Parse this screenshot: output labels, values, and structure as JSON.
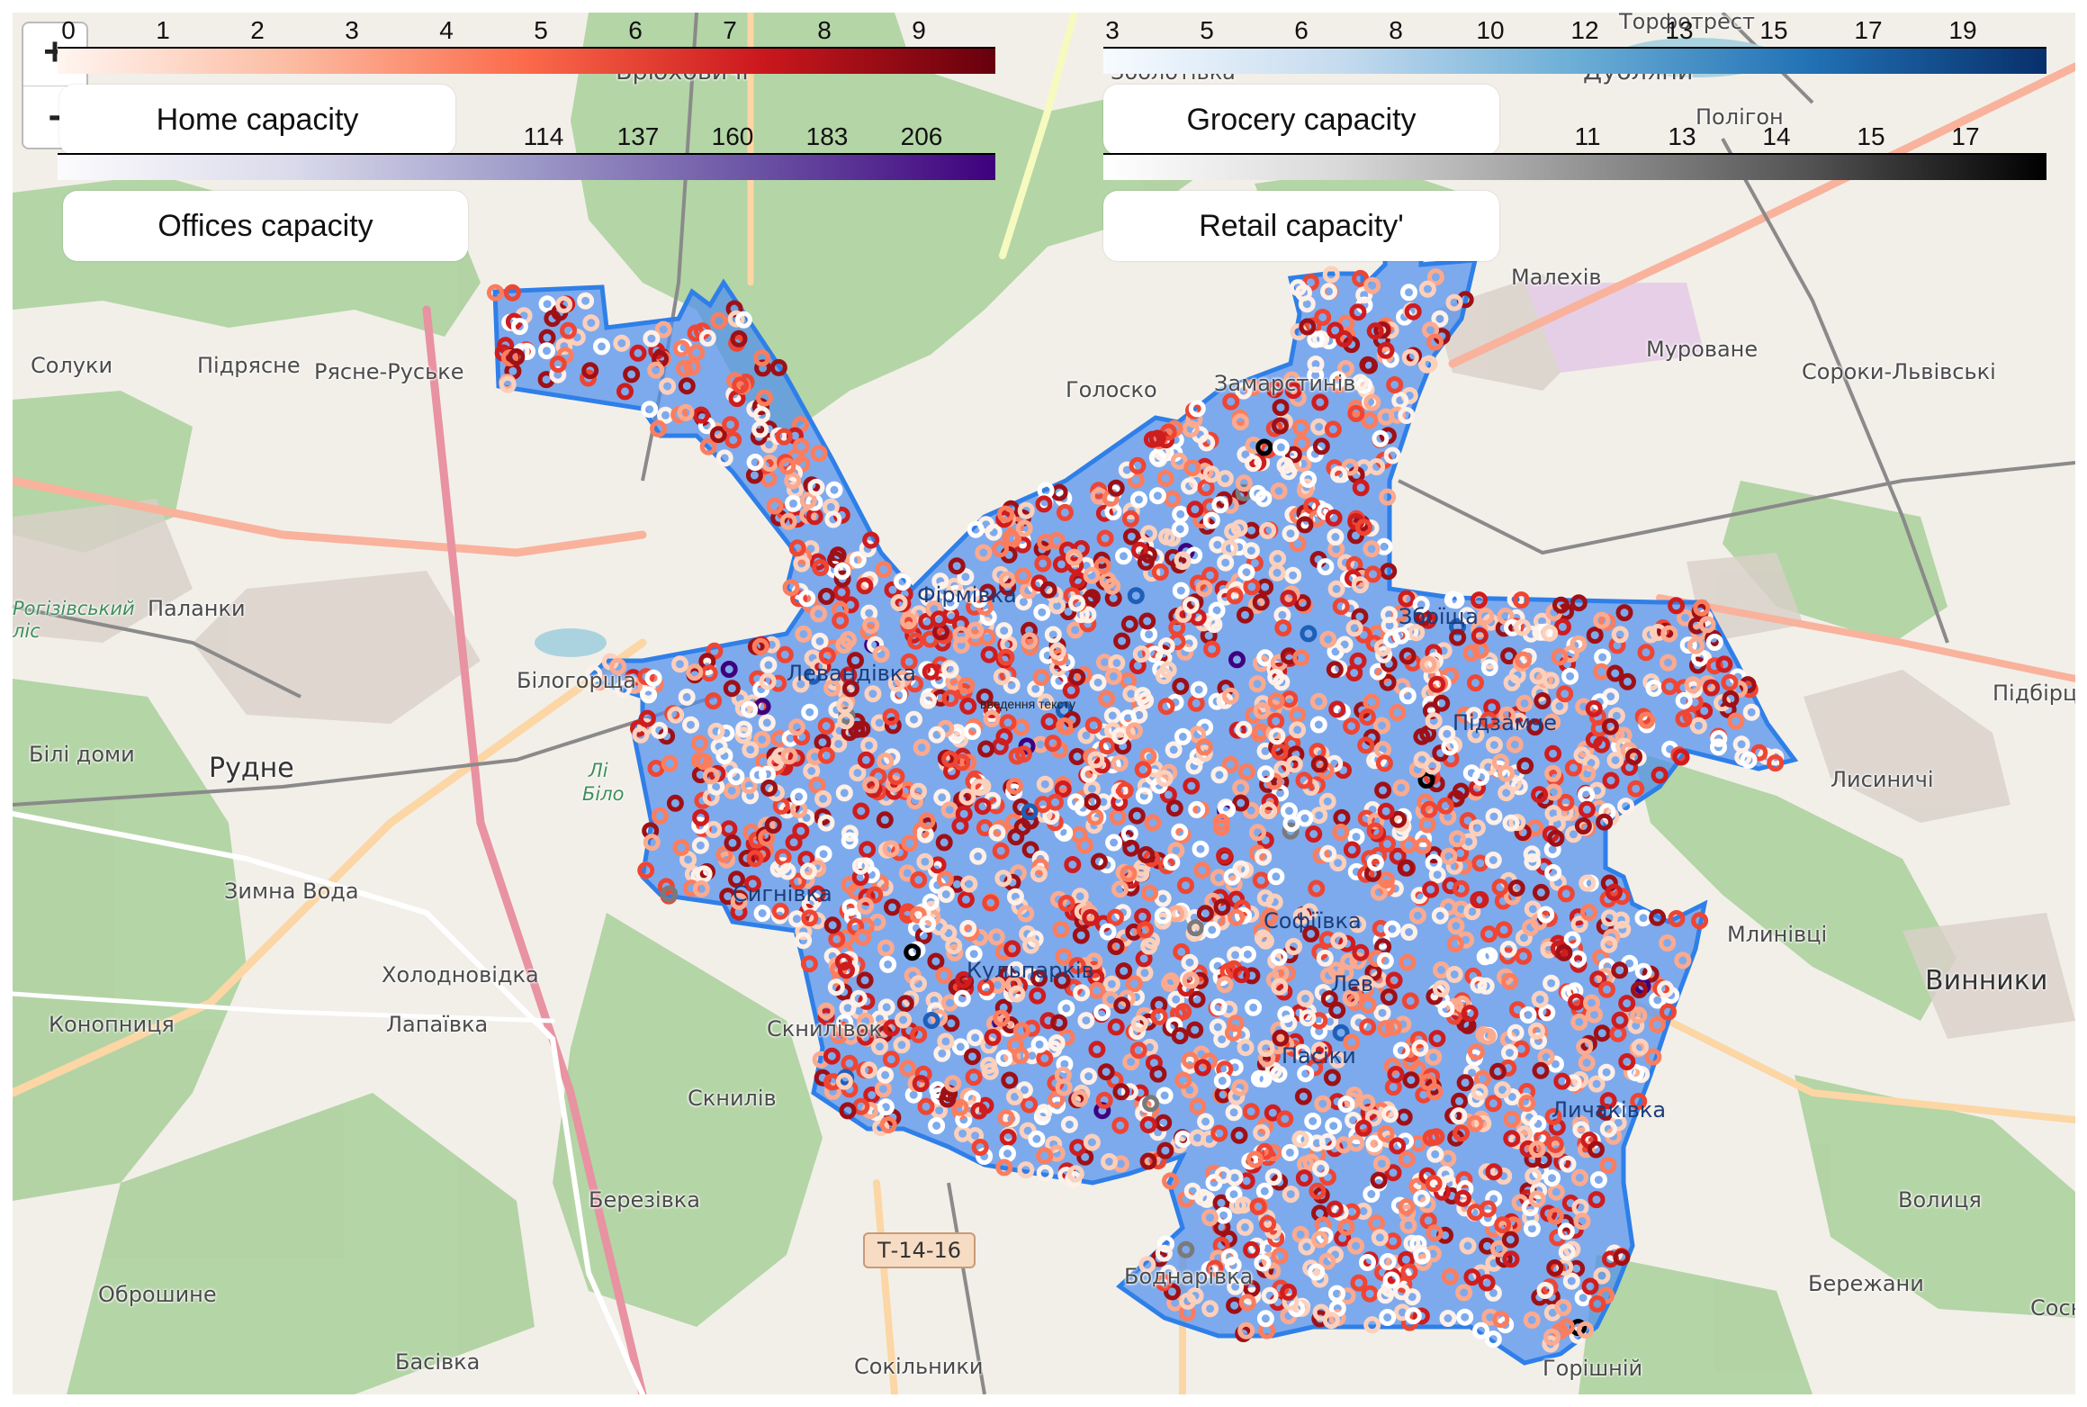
{
  "map": {
    "places": [
      {
        "name": "Брюховичі"
      },
      {
        "name": "Дубляни"
      },
      {
        "name": "Полігон"
      },
      {
        "name": "Торфотрест"
      },
      {
        "name": "Зболотівка"
      },
      {
        "name": "Малехів"
      },
      {
        "name": "Муроване"
      },
      {
        "name": "Сороки-Львівські"
      },
      {
        "name": "Солуки"
      },
      {
        "name": "Підрясне"
      },
      {
        "name": "Рясне-Руське"
      },
      {
        "name": "Голоско"
      },
      {
        "name": "Замарстинів"
      },
      {
        "name": "Паланки"
      },
      {
        "name": "Білогорща"
      },
      {
        "name": "Білі доми"
      },
      {
        "name": "Рудне"
      },
      {
        "name": "Зимна Вода"
      },
      {
        "name": "Холодновідка"
      },
      {
        "name": "Конопниця"
      },
      {
        "name": "Лапаївка"
      },
      {
        "name": "Скнилів"
      },
      {
        "name": "Березівка"
      },
      {
        "name": "Оброшине"
      },
      {
        "name": "Басівка"
      },
      {
        "name": "Сокільники"
      },
      {
        "name": "Боднарівка"
      },
      {
        "name": "Горішній"
      },
      {
        "name": "Лисиничі"
      },
      {
        "name": "Підбірці"
      },
      {
        "name": "Млинівці"
      },
      {
        "name": "Винники"
      },
      {
        "name": "Волиця"
      },
      {
        "name": "Бережани"
      },
      {
        "name": "Сосн"
      },
      {
        "name": "Фірмівка"
      },
      {
        "name": "Сигнівка"
      },
      {
        "name": "Левандівка"
      },
      {
        "name": "Скнилівок"
      },
      {
        "name": "Кульпарків"
      },
      {
        "name": "Пасіки"
      },
      {
        "name": "Личаківка"
      },
      {
        "name": "Збоїща"
      },
      {
        "name": "Софіївка"
      },
      {
        "name": "Лев"
      },
      {
        "name": "Підзамче"
      }
    ],
    "green_labels": [
      "Рогізівський ліс",
      "Лі",
      "Біло"
    ],
    "road_shield": "Т-14-16",
    "annotation": "введення тексту",
    "city_fill": "#4f8fef",
    "city_stroke": "#2f7fe8"
  },
  "zoom": {
    "in_label": "+",
    "out_label": "-"
  },
  "legends": {
    "home": {
      "label": "Home capacity",
      "ticks": [
        "0",
        "1",
        "2",
        "3",
        "4",
        "5",
        "6",
        "7",
        "8",
        "9"
      ],
      "colors": [
        "#fff5f0",
        "#fcbba1",
        "#fb6a4a",
        "#cb181d",
        "#67000d"
      ]
    },
    "grocery": {
      "label": "Grocery capacity",
      "ticks": [
        "3",
        "5",
        "6",
        "8",
        "10",
        "12",
        "13",
        "15",
        "17",
        "19"
      ],
      "colors": [
        "#f7fbff",
        "#c6dbef",
        "#6baed6",
        "#2171b5",
        "#08306b"
      ]
    },
    "offices": {
      "label": "Offices capacity",
      "ticks": [
        "114",
        "137",
        "160",
        "183",
        "206"
      ],
      "colors": [
        "#fcfbfd",
        "#dadaeb",
        "#9e9ac8",
        "#6a51a3",
        "#3f007d"
      ]
    },
    "retail": {
      "label": "Retail capacity'",
      "ticks": [
        "11",
        "13",
        "14",
        "15",
        "17"
      ],
      "colors": [
        "#ffffff",
        "#d9d9d9",
        "#969696",
        "#525252",
        "#000000"
      ]
    }
  },
  "points": {
    "count_note": "capacity markers",
    "palette": [
      "#fdd0bc",
      "#fcaa8f",
      "#fb7d5e",
      "#ef4533",
      "#cf1c1e",
      "#ffffff",
      "#9e1016",
      "#fff0e8"
    ],
    "rare": [
      "#000000",
      "#3f007d",
      "#1f5fb8",
      "#7a7a7a"
    ]
  }
}
